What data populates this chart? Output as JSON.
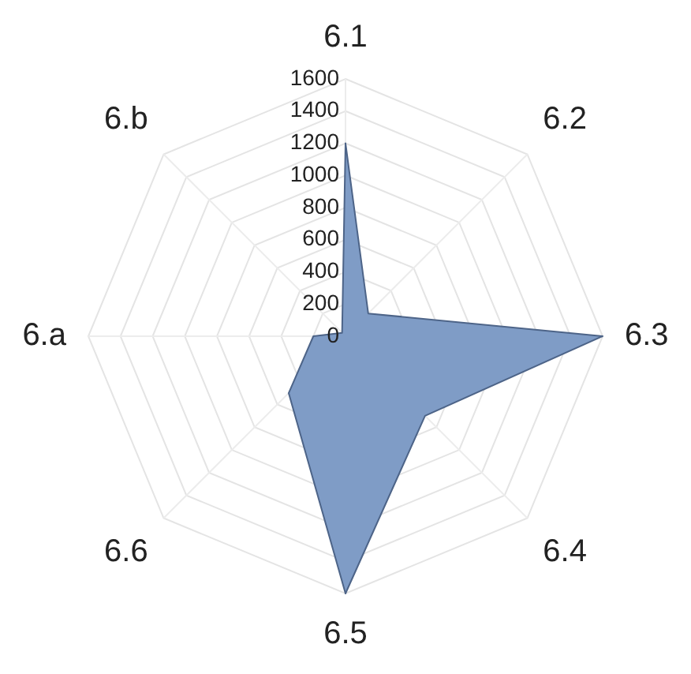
{
  "chart_data": {
    "type": "radar",
    "categories": [
      "6.1",
      "6.2",
      "6.3",
      "6.4",
      "6.5",
      "6.6",
      "6.a",
      "6.b"
    ],
    "series": [
      {
        "color": "#7f9cc6",
        "values": [
          1200,
          200,
          1600,
          700,
          1600,
          500,
          200,
          30
        ]
      }
    ],
    "ylim": [
      0,
      1600
    ],
    "yticks": [
      0,
      200,
      400,
      600,
      800,
      1000,
      1200,
      1400,
      1600
    ],
    "grid": true,
    "legend": false
  }
}
